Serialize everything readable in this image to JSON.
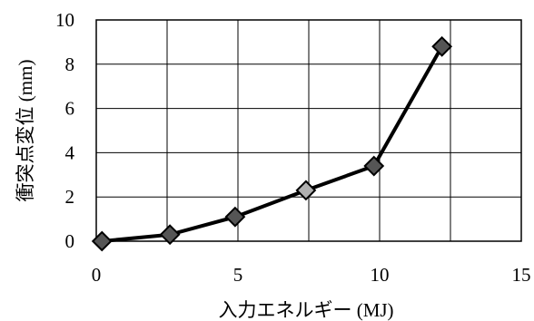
{
  "chart_data": {
    "type": "line",
    "xlabel": "入力エネルギー (MJ)",
    "ylabel": "衝突点変位 (mm)",
    "xlim": [
      0,
      15
    ],
    "ylim": [
      0,
      10
    ],
    "xticks": [
      0,
      5,
      10,
      15
    ],
    "yticks": [
      0,
      2,
      4,
      6,
      8,
      10
    ],
    "grid": true,
    "x_grid_step": 2.5,
    "series": [
      {
        "x": [
          0.2,
          2.6,
          4.9,
          7.4,
          9.8,
          12.2
        ],
        "y": [
          0.0,
          0.3,
          1.1,
          2.3,
          3.4,
          8.8
        ]
      }
    ],
    "colors": {
      "line": "#000000",
      "marker_fill": "#555555",
      "marker_fill_light": "#b0b0b0",
      "grid": "#000000"
    }
  }
}
